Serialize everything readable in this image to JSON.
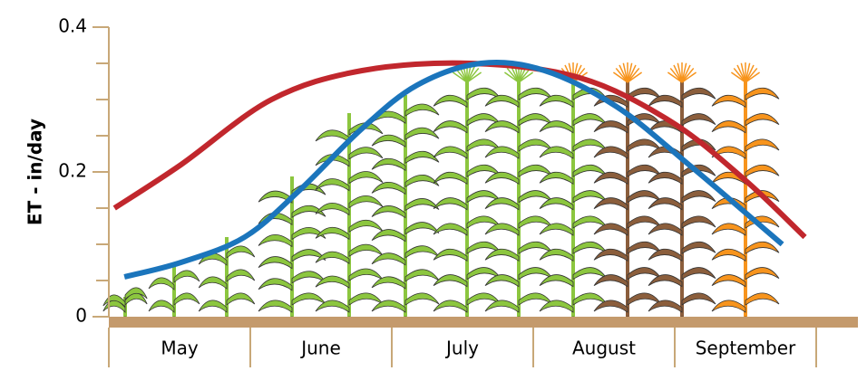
{
  "chart_data": {
    "type": "line",
    "y_label": "ET - in/day",
    "categories": [
      "May",
      "June",
      "July",
      "August",
      "September"
    ],
    "xlim": [
      0,
      5
    ],
    "ylim": [
      0,
      0.4
    ],
    "yticks": [
      0,
      0.2,
      0.4
    ],
    "minor_yticks": [
      0.05,
      0.1,
      0.15,
      0.25,
      0.3,
      0.35
    ],
    "series": [
      {
        "color": "#c1272d",
        "x": [
          0.04,
          0.51,
          1.15,
          1.79,
          2.56,
          3.33,
          3.97,
          4.49,
          4.92
        ],
        "values": [
          0.15,
          0.21,
          0.3,
          0.34,
          0.35,
          0.33,
          0.27,
          0.19,
          0.11
        ]
      },
      {
        "color": "#1b75bc",
        "x": [
          0.11,
          0.51,
          0.96,
          1.35,
          1.79,
          2.18,
          2.63,
          3.08,
          3.59,
          4.1,
          4.76
        ],
        "values": [
          0.055,
          0.075,
          0.11,
          0.175,
          0.26,
          0.32,
          0.35,
          0.34,
          0.29,
          0.21,
          0.1
        ]
      }
    ]
  }
}
